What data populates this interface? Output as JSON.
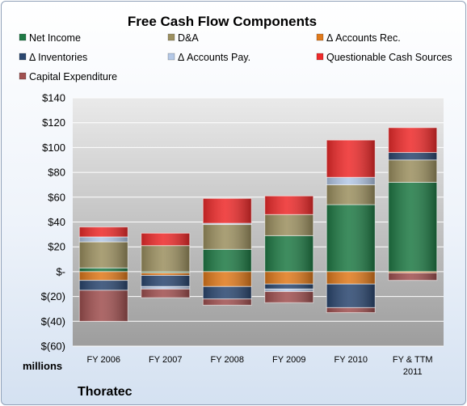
{
  "chart_data": {
    "type": "bar",
    "stacked": true,
    "title": "Free Cash Flow Components",
    "company": "Thoratec",
    "units_label": "millions",
    "categories": [
      [
        "FY 2006"
      ],
      [
        "FY 2007"
      ],
      [
        "FY 2008"
      ],
      [
        "FY 2009"
      ],
      [
        "FY 2010"
      ],
      [
        "FY & TTM",
        "2011"
      ]
    ],
    "ylim": [
      -60,
      140
    ],
    "y_ticks": [
      {
        "value": 140,
        "label": "$140"
      },
      {
        "value": 120,
        "label": "$120"
      },
      {
        "value": 100,
        "label": "$100"
      },
      {
        "value": 80,
        "label": "$80"
      },
      {
        "value": 60,
        "label": "$60"
      },
      {
        "value": 40,
        "label": "$40"
      },
      {
        "value": 20,
        "label": "$20"
      },
      {
        "value": 0,
        "label": "$-"
      },
      {
        "value": -20,
        "label": "$(20)"
      },
      {
        "value": -40,
        "label": "$(40)"
      },
      {
        "value": -60,
        "label": "$(60)"
      }
    ],
    "legend_position": "top",
    "grid": true,
    "series": [
      {
        "name": "Net Income",
        "color": "#1f7a45",
        "values": [
          3,
          -1,
          18,
          29,
          54,
          72
        ]
      },
      {
        "name": "D&A",
        "color": "#9c9060",
        "values": [
          21,
          21,
          20,
          17,
          16,
          18
        ]
      },
      {
        "name": "Δ Accounts Rec.",
        "color": "#e07a1c",
        "values": [
          -7,
          -2,
          -12,
          -10,
          -10,
          -1
        ]
      },
      {
        "name": "Δ Inventories",
        "color": "#2b4770",
        "values": [
          -8,
          -9,
          -10,
          -4,
          -19,
          6
        ]
      },
      {
        "name": "Δ Accounts Pay.",
        "color": "#b4c8e6",
        "values": [
          4,
          -2,
          1,
          -2,
          6,
          0
        ]
      },
      {
        "name": "Questionable Cash Sources",
        "color": "#ee2b2b",
        "values": [
          8,
          10,
          20,
          15,
          30,
          20
        ]
      },
      {
        "name": "Capital Expenditure",
        "color": "#a05050",
        "values": [
          -25,
          -7,
          -5,
          -9,
          -4,
          -6
        ]
      }
    ]
  }
}
